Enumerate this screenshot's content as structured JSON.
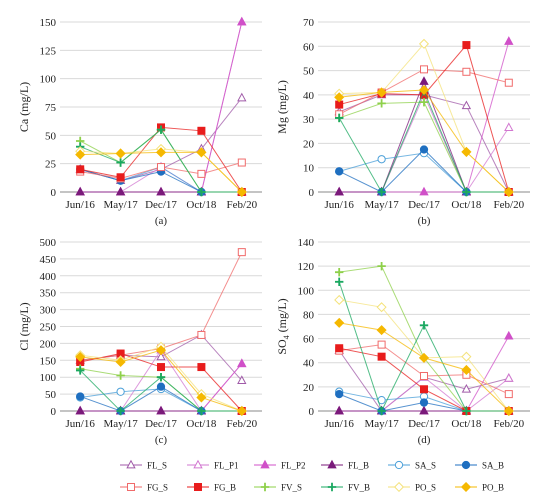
{
  "series_styles": [
    {
      "name": "FL_S",
      "color": "#a05aa8",
      "marker": "triangle",
      "filled": false
    },
    {
      "name": "FL_P1",
      "color": "#d277d0",
      "marker": "triangle",
      "filled": false
    },
    {
      "name": "FL_P2",
      "color": "#d050c8",
      "marker": "triangle",
      "filled": true
    },
    {
      "name": "FL_B",
      "color": "#7a1a7a",
      "marker": "triangle",
      "filled": true
    },
    {
      "name": "SA_S",
      "color": "#4a9fd8",
      "marker": "circle",
      "filled": false
    },
    {
      "name": "SA_B",
      "color": "#1f6fc0",
      "marker": "circle",
      "filled": true
    },
    {
      "name": "FG_S",
      "color": "#f06a6a",
      "marker": "square",
      "filled": false
    },
    {
      "name": "FG_B",
      "color": "#e81c1c",
      "marker": "square",
      "filled": true
    },
    {
      "name": "FV_S",
      "color": "#8ed04a",
      "marker": "plus",
      "filled": true
    },
    {
      "name": "FV_B",
      "color": "#1aa860",
      "marker": "plus",
      "filled": true
    },
    {
      "name": "PO_S",
      "color": "#f4e27a",
      "marker": "diamond",
      "filled": false
    },
    {
      "name": "PO_B",
      "color": "#f5b800",
      "marker": "diamond",
      "filled": true
    }
  ],
  "legend_rows": [
    [
      "FL_S",
      "FL_P1",
      "FL_P2",
      "FL_B",
      "SA_S",
      "SA_B"
    ],
    [
      "FG_S",
      "FG_B",
      "FV_S",
      "FV_B",
      "PO_S",
      "PO_B"
    ]
  ],
  "chart_data": [
    {
      "type": "line",
      "panel": "(a)",
      "ylabel": "Ca (mg/L)",
      "categories": [
        "Jun/16",
        "May/17",
        "Dec/17",
        "Oct/18",
        "Feb/20"
      ],
      "ylim": [
        0,
        150
      ],
      "yticks": [
        0,
        25,
        50,
        75,
        100,
        125,
        150
      ],
      "grid": true,
      "series": [
        {
          "name": "FL_S",
          "values": [
            20,
            10,
            20,
            38,
            83
          ]
        },
        {
          "name": "FL_P1",
          "values": [
            0,
            0,
            22,
            0,
            150
          ]
        },
        {
          "name": "FL_P2",
          "values": [
            0,
            0,
            0,
            0,
            150
          ]
        },
        {
          "name": "FL_B",
          "values": [
            0,
            0,
            0,
            0,
            0
          ]
        },
        {
          "name": "SA_S",
          "values": [
            20,
            10,
            22,
            0,
            0
          ]
        },
        {
          "name": "SA_B",
          "values": [
            20,
            10,
            18,
            0,
            0
          ]
        },
        {
          "name": "FG_S",
          "values": [
            18,
            12,
            22,
            16,
            26
          ]
        },
        {
          "name": "FG_B",
          "values": [
            20,
            13,
            57,
            54,
            0
          ]
        },
        {
          "name": "FV_S",
          "values": [
            45,
            26,
            55,
            0,
            0
          ]
        },
        {
          "name": "FV_B",
          "values": [
            40,
            26,
            55,
            0,
            0
          ]
        },
        {
          "name": "PO_S",
          "values": [
            36,
            34,
            38,
            35,
            0
          ]
        },
        {
          "name": "PO_B",
          "values": [
            33,
            34,
            35,
            35,
            0
          ]
        }
      ]
    },
    {
      "type": "line",
      "panel": "(b)",
      "ylabel": "Mg (mg/L)",
      "categories": [
        "Jun/16",
        "May/17",
        "Dec/17",
        "Oct/18",
        "Feb/20"
      ],
      "ylim": [
        0,
        70
      ],
      "yticks": [
        0,
        10,
        20,
        30,
        40,
        50,
        60,
        70
      ],
      "grid": true,
      "series": [
        {
          "name": "FL_S",
          "values": [
            33,
            40,
            40,
            35.5,
            0
          ]
        },
        {
          "name": "FL_P1",
          "values": [
            0,
            0,
            40,
            0,
            26.5
          ]
        },
        {
          "name": "FL_P2",
          "values": [
            0,
            0,
            0,
            0,
            62
          ]
        },
        {
          "name": "FL_B",
          "values": [
            0,
            0,
            45.5,
            0,
            0
          ]
        },
        {
          "name": "SA_S",
          "values": [
            8.5,
            13.5,
            16,
            0,
            0
          ]
        },
        {
          "name": "SA_B",
          "values": [
            8.5,
            0,
            17.5,
            0,
            0
          ]
        },
        {
          "name": "FG_S",
          "values": [
            32,
            41,
            50.5,
            49.5,
            45
          ]
        },
        {
          "name": "FG_B",
          "values": [
            36,
            40.5,
            40,
            60.5,
            0
          ]
        },
        {
          "name": "FV_S",
          "values": [
            30.5,
            36.5,
            37,
            0,
            0
          ]
        },
        {
          "name": "FV_B",
          "values": [
            30.5,
            0,
            41.5,
            0,
            0
          ]
        },
        {
          "name": "PO_S",
          "values": [
            40.5,
            41,
            61,
            16.5,
            0
          ]
        },
        {
          "name": "PO_B",
          "values": [
            39,
            41,
            42,
            16.5,
            0
          ]
        }
      ]
    },
    {
      "type": "line",
      "panel": "(c)",
      "ylabel": "Cl (mg/L)",
      "categories": [
        "Jun/16",
        "May/17",
        "Dec/17",
        "Oct/18",
        "Feb/20"
      ],
      "ylim": [
        0,
        500
      ],
      "yticks": [
        0,
        50,
        100,
        150,
        200,
        250,
        300,
        350,
        400,
        450,
        500
      ],
      "grid": true,
      "series": [
        {
          "name": "FL_S",
          "values": [
            150,
            165,
            160,
            225,
            90
          ]
        },
        {
          "name": "FL_P1",
          "values": [
            0,
            0,
            180,
            0,
            140
          ]
        },
        {
          "name": "FL_P2",
          "values": [
            0,
            0,
            0,
            0,
            140
          ]
        },
        {
          "name": "FL_B",
          "values": [
            0,
            0,
            0,
            0,
            0
          ]
        },
        {
          "name": "SA_S",
          "values": [
            40,
            57,
            65,
            0,
            0
          ]
        },
        {
          "name": "SA_B",
          "values": [
            43,
            0,
            72,
            0,
            0
          ]
        },
        {
          "name": "FG_S",
          "values": [
            150,
            165,
            185,
            225,
            470
          ]
        },
        {
          "name": "FG_B",
          "values": [
            145,
            170,
            130,
            130,
            0
          ]
        },
        {
          "name": "FV_S",
          "values": [
            125,
            105,
            100,
            0,
            0
          ]
        },
        {
          "name": "FV_B",
          "values": [
            120,
            0,
            100,
            0,
            0
          ]
        },
        {
          "name": "PO_S",
          "values": [
            165,
            150,
            190,
            50,
            0
          ]
        },
        {
          "name": "PO_B",
          "values": [
            160,
            145,
            180,
            40,
            0
          ]
        }
      ]
    },
    {
      "type": "line",
      "panel": "(d)",
      "ylabel": "SO",
      "ylabel_sub": "4",
      "ylabel_suffix": " (mg/L)",
      "categories": [
        "Jun/16",
        "May/17",
        "Dec/17",
        "Oct/18",
        "Feb/20"
      ],
      "ylim": [
        0,
        140
      ],
      "yticks": [
        0,
        20,
        40,
        60,
        80,
        100,
        120,
        140
      ],
      "grid": true,
      "series": [
        {
          "name": "FL_S",
          "values": [
            50,
            0,
            28,
            18,
            27
          ]
        },
        {
          "name": "FL_P1",
          "values": [
            0,
            0,
            28,
            0,
            27
          ]
        },
        {
          "name": "FL_P2",
          "values": [
            0,
            0,
            0,
            0,
            62
          ]
        },
        {
          "name": "FL_B",
          "values": [
            0,
            0,
            0,
            0,
            0
          ]
        },
        {
          "name": "SA_S",
          "values": [
            16,
            9,
            12,
            0,
            0
          ]
        },
        {
          "name": "SA_B",
          "values": [
            14,
            0,
            7,
            0,
            0
          ]
        },
        {
          "name": "FG_S",
          "values": [
            50,
            55,
            29,
            30,
            14
          ]
        },
        {
          "name": "FG_B",
          "values": [
            52,
            45,
            18,
            0,
            0
          ]
        },
        {
          "name": "FV_S",
          "values": [
            115,
            120,
            44,
            0,
            0
          ]
        },
        {
          "name": "FV_B",
          "values": [
            107,
            0,
            71,
            0,
            0
          ]
        },
        {
          "name": "PO_S",
          "values": [
            92,
            86,
            44,
            45,
            0
          ]
        },
        {
          "name": "PO_B",
          "values": [
            73,
            67,
            44,
            34,
            0
          ]
        }
      ]
    }
  ]
}
